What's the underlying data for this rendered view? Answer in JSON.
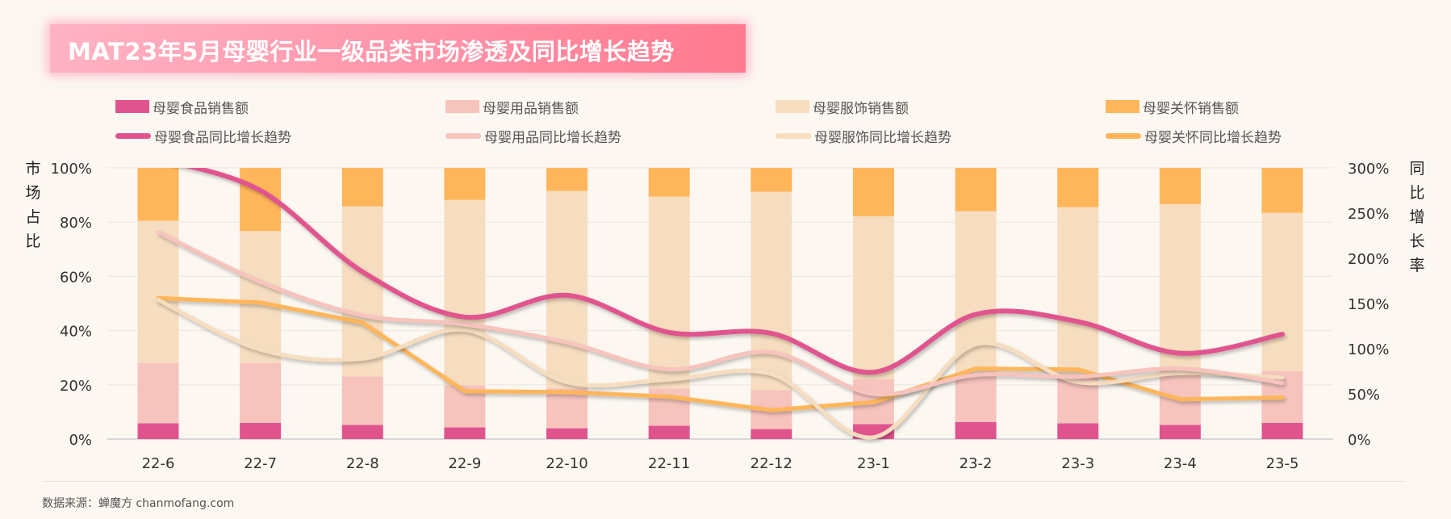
{
  "title": "MAT23年5月母婴行业一级品类市场渗透及同比增长趋势",
  "footer": "数据来源：蝉魔方 chanmofang.com",
  "chart_data": {
    "type": "bar+line",
    "title": "MAT23年5月母婴行业一级品类市场渗透及同比增长趋势",
    "categories": [
      "22-6",
      "22-7",
      "22-8",
      "22-9",
      "22-10",
      "22-11",
      "22-12",
      "23-1",
      "23-2",
      "23-3",
      "23-4",
      "23-5"
    ],
    "left_axis": {
      "label": "市场占比",
      "ylim": [
        0,
        100
      ],
      "ticks": [
        "0%",
        "20%",
        "40%",
        "60%",
        "80%",
        "100%"
      ]
    },
    "right_axis": {
      "label": "同比增长率",
      "ylim": [
        0,
        300
      ],
      "ticks": [
        "0%",
        "50%",
        "100%",
        "150%",
        "200%",
        "250%",
        "300%"
      ]
    },
    "grid": true,
    "legend_position": "top",
    "bar_series": [
      {
        "name": "母婴食品销售额",
        "color": "#e0548e",
        "values": [
          5.8,
          6.0,
          5.2,
          4.3,
          4.0,
          4.9,
          3.7,
          5.5,
          6.3,
          5.8,
          5.2,
          6.0
        ]
      },
      {
        "name": "母婴用品销售额",
        "color": "#f6c3bd",
        "values": [
          22.3,
          22.1,
          17.9,
          15.6,
          14.7,
          13.7,
          14.3,
          16.6,
          18.2,
          18.2,
          20.8,
          19.1
        ]
      },
      {
        "name": "母婴服饰销售额",
        "color": "#f6ddbf",
        "values": [
          52.4,
          48.6,
          62.7,
          68.3,
          72.8,
          70.8,
          73.2,
          60.1,
          59.5,
          61.5,
          60.7,
          58.3
        ]
      },
      {
        "name": "母婴关怀销售额",
        "color": "#ffb65a",
        "values": [
          19.5,
          23.3,
          14.2,
          11.8,
          8.5,
          10.6,
          8.8,
          17.8,
          16.0,
          14.5,
          13.3,
          16.6
        ]
      }
    ],
    "line_series": [
      {
        "name": "母婴食品同比增长趋势",
        "color": "#e0548e",
        "values": [
          310,
          275,
          185,
          135,
          159,
          118,
          117,
          74,
          138,
          130,
          95,
          116
        ]
      },
      {
        "name": "母婴用品同比增长趋势",
        "color": "#f6c3bd",
        "values": [
          229,
          174,
          137,
          127,
          107,
          77,
          96,
          50,
          71,
          69,
          78,
          62
        ]
      },
      {
        "name": "母婴服饰同比增长趋势",
        "color": "#f6ddbf",
        "values": [
          154,
          99,
          89,
          121,
          63,
          66,
          72,
          2,
          105,
          63,
          73,
          68
        ]
      },
      {
        "name": "母婴关怀同比增长趋势",
        "color": "#ffb65a",
        "values": [
          156,
          151,
          129,
          53,
          52,
          47,
          32,
          41,
          78,
          77,
          44,
          46
        ]
      }
    ]
  }
}
